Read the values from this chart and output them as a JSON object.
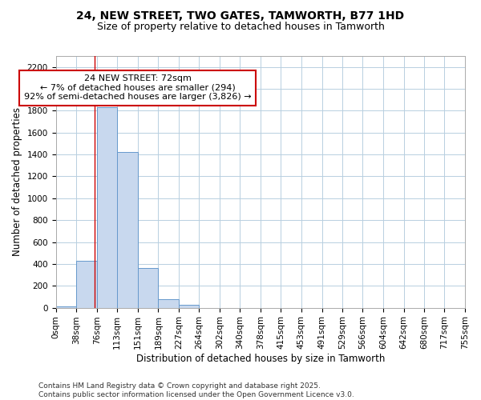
{
  "title_line1": "24, NEW STREET, TWO GATES, TAMWORTH, B77 1HD",
  "title_line2": "Size of property relative to detached houses in Tamworth",
  "xlabel": "Distribution of detached houses by size in Tamworth",
  "ylabel": "Number of detached properties",
  "bin_edges": [
    0,
    38,
    76,
    113,
    151,
    189,
    227,
    264,
    302,
    340,
    378,
    415,
    453,
    491,
    529,
    566,
    604,
    642,
    680,
    717,
    755
  ],
  "bin_labels": [
    "0sqm",
    "38sqm",
    "76sqm",
    "113sqm",
    "151sqm",
    "189sqm",
    "227sqm",
    "264sqm",
    "302sqm",
    "340sqm",
    "378sqm",
    "415sqm",
    "453sqm",
    "491sqm",
    "529sqm",
    "566sqm",
    "604sqm",
    "642sqm",
    "680sqm",
    "717sqm",
    "755sqm"
  ],
  "bar_heights": [
    10,
    430,
    1830,
    1420,
    360,
    75,
    25,
    0,
    0,
    0,
    0,
    0,
    0,
    0,
    0,
    0,
    0,
    0,
    0,
    0
  ],
  "bar_color": "#c8d8ee",
  "bar_edge_color": "#6699cc",
  "property_size": 72,
  "property_line_color": "#cc0000",
  "annotation_text": "24 NEW STREET: 72sqm\n← 7% of detached houses are smaller (294)\n92% of semi-detached houses are larger (3,826) →",
  "annotation_box_color": "#ffffff",
  "annotation_box_edge_color": "#cc0000",
  "ylim": [
    0,
    2300
  ],
  "yticks": [
    0,
    200,
    400,
    600,
    800,
    1000,
    1200,
    1400,
    1600,
    1800,
    2000,
    2200
  ],
  "grid_color": "#b8cfe0",
  "background_color": "#ffffff",
  "plot_bg_color": "#ffffff",
  "footer_line1": "Contains HM Land Registry data © Crown copyright and database right 2025.",
  "footer_line2": "Contains public sector information licensed under the Open Government Licence v3.0.",
  "title_fontsize": 10,
  "subtitle_fontsize": 9,
  "axis_label_fontsize": 8.5,
  "tick_fontsize": 7.5,
  "annotation_fontsize": 8,
  "footer_fontsize": 6.5
}
